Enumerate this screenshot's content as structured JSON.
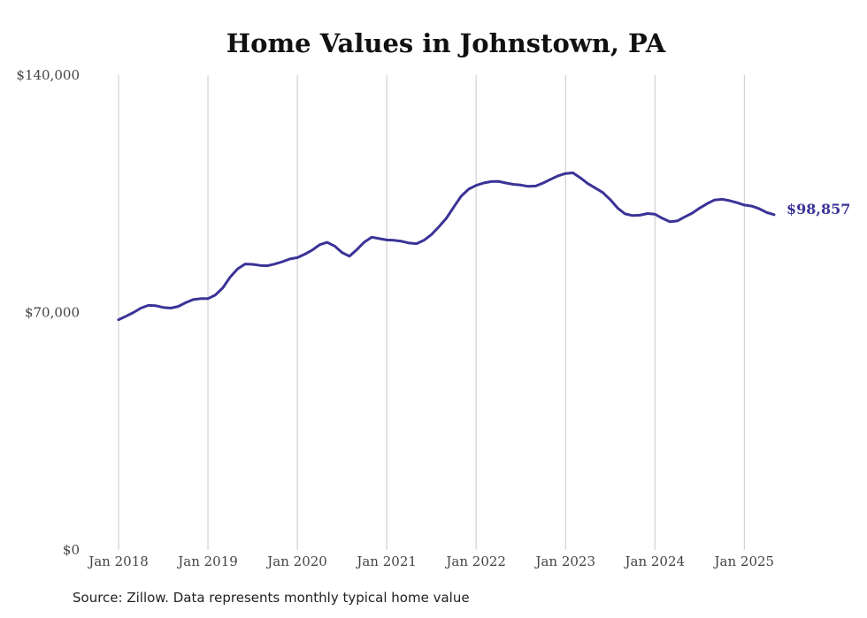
{
  "chart_data": {
    "type": "line",
    "title": "Home Values in Johnstown, PA",
    "ylim": [
      0,
      140000
    ],
    "y_tick_values": [
      0,
      70000,
      140000
    ],
    "y_tick_labels": [
      "$0",
      "$70,000",
      "$140,000"
    ],
    "x_tick_values": [
      "2018-01",
      "2019-01",
      "2020-01",
      "2021-01",
      "2022-01",
      "2023-01",
      "2024-01",
      "2025-01"
    ],
    "x_tick_labels": [
      "Jan 2018",
      "Jan 2019",
      "Jan 2020",
      "Jan 2021",
      "Jan 2022",
      "Jan 2023",
      "Jan 2024",
      "Jan 2025"
    ],
    "grid": "vertical lines at each January",
    "line_color": "#3b3397",
    "end_label": "$98,857",
    "x": [
      "2018-01",
      "2018-02",
      "2018-03",
      "2018-04",
      "2018-05",
      "2018-06",
      "2018-07",
      "2018-08",
      "2018-09",
      "2018-10",
      "2018-11",
      "2018-12",
      "2019-01",
      "2019-02",
      "2019-03",
      "2019-04",
      "2019-05",
      "2019-06",
      "2019-07",
      "2019-08",
      "2019-09",
      "2019-10",
      "2019-11",
      "2019-12",
      "2020-01",
      "2020-02",
      "2020-03",
      "2020-04",
      "2020-05",
      "2020-06",
      "2020-07",
      "2020-08",
      "2020-09",
      "2020-10",
      "2020-11",
      "2020-12",
      "2021-01",
      "2021-02",
      "2021-03",
      "2021-04",
      "2021-05",
      "2021-06",
      "2021-07",
      "2021-08",
      "2021-09",
      "2021-10",
      "2021-11",
      "2021-12",
      "2022-01",
      "2022-02",
      "2022-03",
      "2022-04",
      "2022-05",
      "2022-06",
      "2022-07",
      "2022-08",
      "2022-09",
      "2022-10",
      "2022-11",
      "2022-12",
      "2023-01",
      "2023-02",
      "2023-03",
      "2023-04",
      "2023-05",
      "2023-06",
      "2023-07",
      "2023-08",
      "2023-09",
      "2023-10",
      "2023-11",
      "2023-12",
      "2024-01",
      "2024-02",
      "2024-03",
      "2024-04",
      "2024-05",
      "2024-06",
      "2024-07",
      "2024-08",
      "2024-09",
      "2024-10",
      "2024-11",
      "2024-12",
      "2025-01",
      "2025-02",
      "2025-03",
      "2025-04",
      "2025-05"
    ],
    "y": [
      67900,
      68900,
      70000,
      71300,
      72100,
      72000,
      71500,
      71300,
      71800,
      72900,
      73800,
      74100,
      74100,
      75200,
      77300,
      80500,
      82900,
      84300,
      84200,
      83900,
      83800,
      84300,
      85000,
      85800,
      86200,
      87200,
      88400,
      90000,
      90700,
      89600,
      87700,
      86600,
      88600,
      90800,
      92200,
      91800,
      91400,
      91300,
      91000,
      90500,
      90300,
      91300,
      93000,
      95300,
      97800,
      101100,
      104300,
      106400,
      107500,
      108200,
      108600,
      108700,
      108200,
      107800,
      107600,
      107200,
      107300,
      108200,
      109300,
      110300,
      111000,
      111200,
      109700,
      108000,
      106700,
      105400,
      103300,
      100800,
      99100,
      98600,
      98700,
      99200,
      99000,
      97800,
      96800,
      97000,
      98200,
      99300,
      100800,
      102100,
      103200,
      103400,
      103000,
      102400,
      101700,
      101400,
      100600,
      99500,
      98857
    ]
  },
  "source_text": "Source: Zillow. Data represents monthly typical home value"
}
